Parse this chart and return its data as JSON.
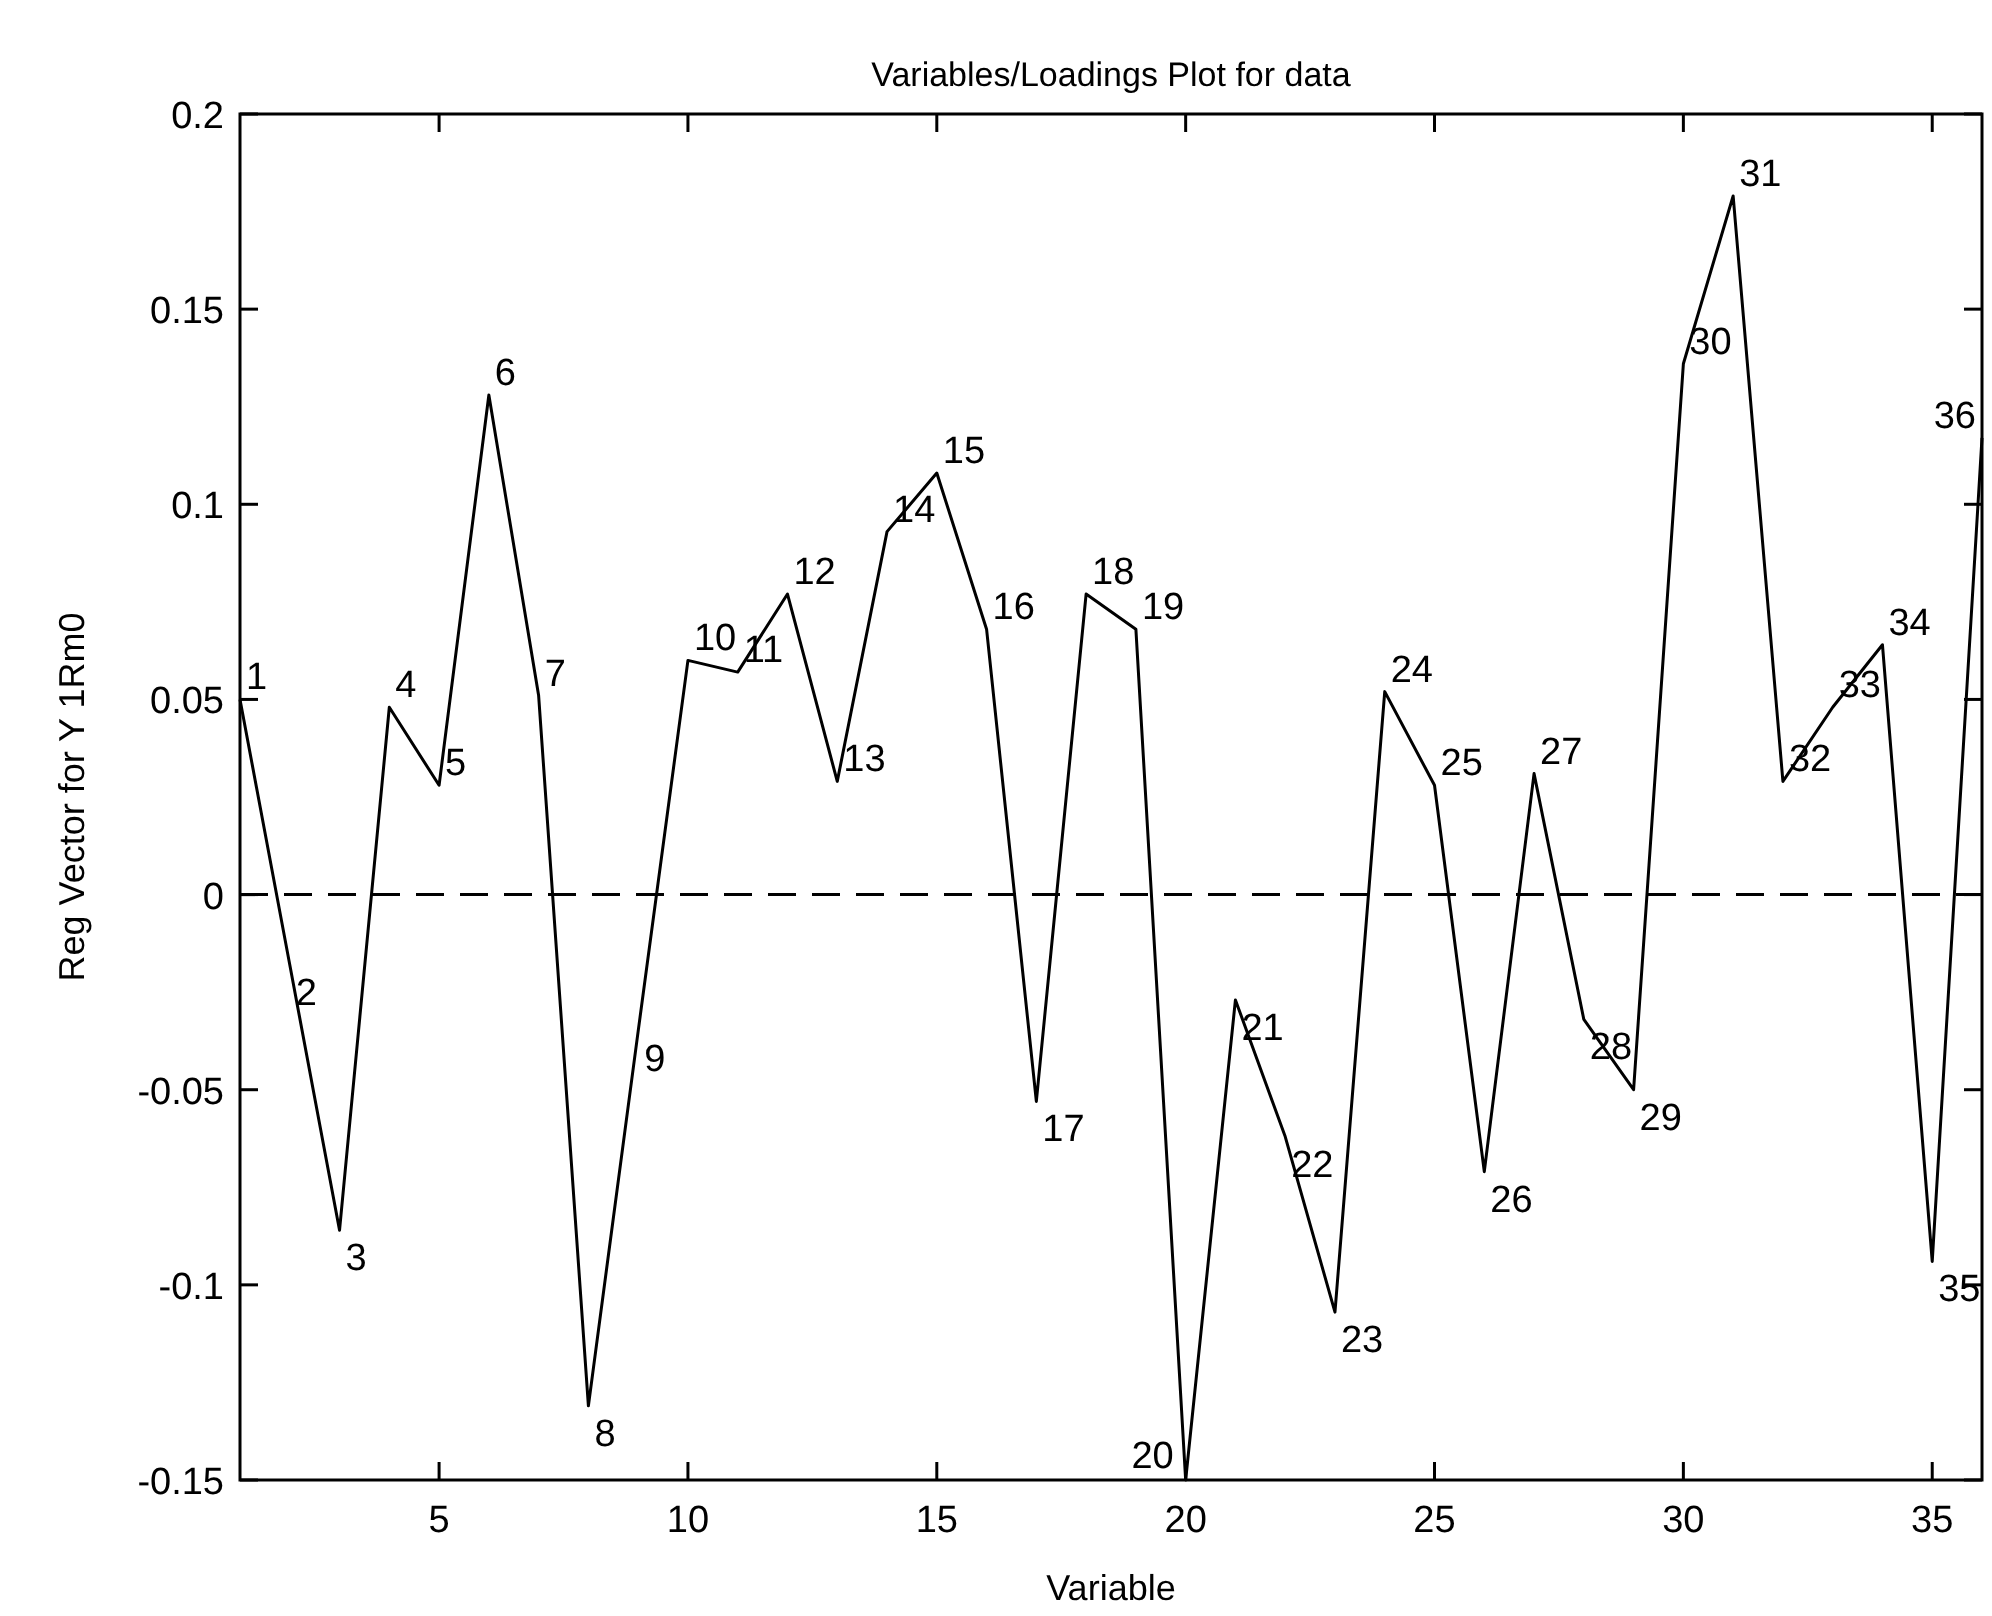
{
  "chart_data": {
    "type": "line",
    "title": "Variables/Loadings Plot for data",
    "xlabel": "Variable",
    "ylabel": "Reg Vector for Y 1Rm0",
    "x": [
      1,
      2,
      3,
      4,
      5,
      6,
      7,
      8,
      9,
      10,
      11,
      12,
      13,
      14,
      15,
      16,
      17,
      18,
      19,
      20,
      21,
      22,
      23,
      24,
      25,
      26,
      27,
      28,
      29,
      30,
      31,
      32,
      33,
      34,
      35,
      36
    ],
    "series": [
      {
        "color": "#000000",
        "values": [
          0.05,
          -0.018,
          -0.086,
          0.048,
          0.028,
          0.128,
          0.051,
          -0.131,
          -0.035,
          0.06,
          0.057,
          0.077,
          0.029,
          0.093,
          0.108,
          0.068,
          -0.053,
          0.077,
          0.068,
          -0.15,
          -0.027,
          -0.062,
          -0.107,
          0.052,
          0.028,
          -0.071,
          0.031,
          -0.032,
          -0.05,
          0.136,
          0.179,
          0.029,
          0.048,
          0.064,
          -0.094,
          0.117
        ]
      }
    ],
    "annotations": [
      {
        "text": "1",
        "x": 1,
        "y": 0.05
      },
      {
        "text": "2",
        "x": 2,
        "y": -0.018
      },
      {
        "text": "3",
        "x": 3,
        "y": -0.086
      },
      {
        "text": "4",
        "x": 4,
        "y": 0.048
      },
      {
        "text": "5",
        "x": 5,
        "y": 0.028
      },
      {
        "text": "6",
        "x": 6,
        "y": 0.128
      },
      {
        "text": "7",
        "x": 7,
        "y": 0.051
      },
      {
        "text": "8",
        "x": 8,
        "y": -0.131
      },
      {
        "text": "9",
        "x": 9,
        "y": -0.035
      },
      {
        "text": "10",
        "x": 10,
        "y": 0.06
      },
      {
        "text": "11",
        "x": 11,
        "y": 0.057
      },
      {
        "text": "12",
        "x": 12,
        "y": 0.077
      },
      {
        "text": "13",
        "x": 13,
        "y": 0.029
      },
      {
        "text": "14",
        "x": 14,
        "y": 0.093
      },
      {
        "text": "15",
        "x": 15,
        "y": 0.108
      },
      {
        "text": "16",
        "x": 16,
        "y": 0.068
      },
      {
        "text": "17",
        "x": 17,
        "y": -0.053
      },
      {
        "text": "18",
        "x": 18,
        "y": 0.077
      },
      {
        "text": "19",
        "x": 19,
        "y": 0.068
      },
      {
        "text": "20",
        "x": 20,
        "y": -0.15
      },
      {
        "text": "21",
        "x": 21,
        "y": -0.027
      },
      {
        "text": "22",
        "x": 22,
        "y": -0.062
      },
      {
        "text": "23",
        "x": 23,
        "y": -0.107
      },
      {
        "text": "24",
        "x": 24,
        "y": 0.052
      },
      {
        "text": "25",
        "x": 25,
        "y": 0.028
      },
      {
        "text": "26",
        "x": 26,
        "y": -0.071
      },
      {
        "text": "27",
        "x": 27,
        "y": 0.031
      },
      {
        "text": "28",
        "x": 28,
        "y": -0.032
      },
      {
        "text": "29",
        "x": 29,
        "y": -0.05
      },
      {
        "text": "30",
        "x": 30,
        "y": 0.136
      },
      {
        "text": "31",
        "x": 31,
        "y": 0.179
      },
      {
        "text": "32",
        "x": 32,
        "y": 0.029
      },
      {
        "text": "33",
        "x": 33,
        "y": 0.048
      },
      {
        "text": "34",
        "x": 34,
        "y": 0.064
      },
      {
        "text": "35",
        "x": 35,
        "y": -0.094
      },
      {
        "text": "36",
        "x": 36,
        "y": 0.117
      }
    ],
    "ref_lines": [
      {
        "axis": "y",
        "value": 0,
        "color": "#000000",
        "line_style": "dashed"
      }
    ],
    "xlim": [
      1,
      36
    ],
    "xticks": [
      5,
      10,
      15,
      20,
      25,
      30,
      35
    ],
    "ylim": [
      -0.15,
      0.2
    ],
    "yticks": [
      -0.15,
      -0.1,
      -0.05,
      0,
      0.05,
      0.1,
      0.15,
      0.2
    ],
    "grid": false,
    "marker": "none",
    "line_style": "solid"
  }
}
